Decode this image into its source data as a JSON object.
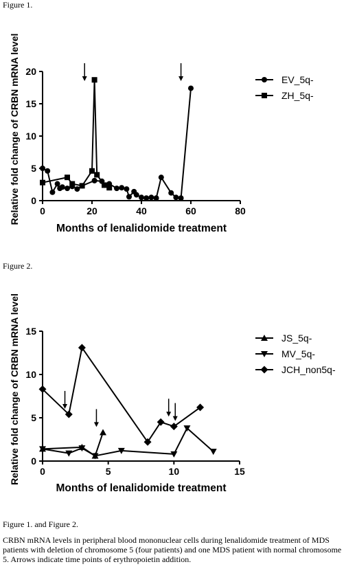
{
  "figure1_label": "Figure 1.",
  "figure2_label": "Figure 2.",
  "caption_title": "Figure 1. and Figure 2.",
  "caption_body": "CRBN mRNA levels in peripheral blood mononuclear cells during lenalidomide treatment of MDS patients with deletion of chromosome 5 (four patients) and one MDS patient with normal chromosome 5. Arrows indicate time points of erythropoietin addition.",
  "chart_data": [
    {
      "type": "line",
      "xlabel": "Months of lenalidomide treatment",
      "ylabel": "Relative fold change of CRBN mRNA level",
      "xlim": [
        0,
        80
      ],
      "ylim": [
        0,
        20
      ],
      "xticks": [
        0,
        20,
        40,
        60,
        80
      ],
      "yticks": [
        0,
        5,
        10,
        15,
        20
      ],
      "legend_position": "top-right",
      "series": [
        {
          "name": "EV_5q-",
          "marker": "circle",
          "x": [
            0,
            2,
            4,
            6,
            7,
            8,
            10,
            12,
            14,
            16,
            21,
            24,
            25,
            27,
            30,
            32,
            34,
            35,
            37,
            38,
            40,
            42,
            44,
            46,
            48,
            52,
            54,
            56,
            60
          ],
          "y": [
            5.0,
            4.6,
            1.3,
            2.6,
            1.9,
            2.1,
            1.9,
            2.2,
            1.8,
            2.3,
            3.1,
            3.0,
            2.4,
            2.6,
            1.9,
            2.0,
            1.8,
            0.6,
            1.4,
            0.9,
            0.5,
            0.4,
            0.5,
            0.4,
            3.6,
            1.2,
            0.5,
            0.4,
            17.4
          ]
        },
        {
          "name": "ZH_5q-",
          "marker": "square",
          "x": [
            0,
            10,
            12,
            16,
            20,
            21,
            22,
            25,
            27
          ],
          "y": [
            2.8,
            3.6,
            2.6,
            2.3,
            4.6,
            18.7,
            4.0,
            2.4,
            2.0
          ]
        }
      ],
      "arrows_x": [
        17,
        56
      ]
    },
    {
      "type": "line",
      "xlabel": "Months of lenalidomide treatment",
      "ylabel": "Relative fold change of CRBN mRNA level",
      "xlim": [
        0,
        15
      ],
      "ylim": [
        0,
        15
      ],
      "xticks": [
        0,
        5,
        10,
        15
      ],
      "yticks": [
        0,
        5,
        10,
        15
      ],
      "legend_position": "top-right",
      "series": [
        {
          "name": "JS_5q-",
          "marker": "triangle-up",
          "x": [
            0,
            3,
            4,
            4.6
          ],
          "y": [
            1.4,
            1.6,
            0.6,
            3.3
          ]
        },
        {
          "name": "MV_5q-",
          "marker": "triangle-down",
          "x": [
            0,
            2,
            3,
            4,
            6,
            10,
            11,
            13
          ],
          "y": [
            1.4,
            0.9,
            1.5,
            0.6,
            1.2,
            0.8,
            3.8,
            1.1
          ]
        },
        {
          "name": "JCH_non5q-",
          "marker": "diamond",
          "x": [
            0,
            2,
            3,
            8,
            9,
            10,
            12
          ],
          "y": [
            8.3,
            5.4,
            13.1,
            2.2,
            4.5,
            4.0,
            6.2
          ]
        }
      ],
      "arrows_x": [
        1.7,
        4.1,
        9.6,
        10.1
      ]
    }
  ]
}
